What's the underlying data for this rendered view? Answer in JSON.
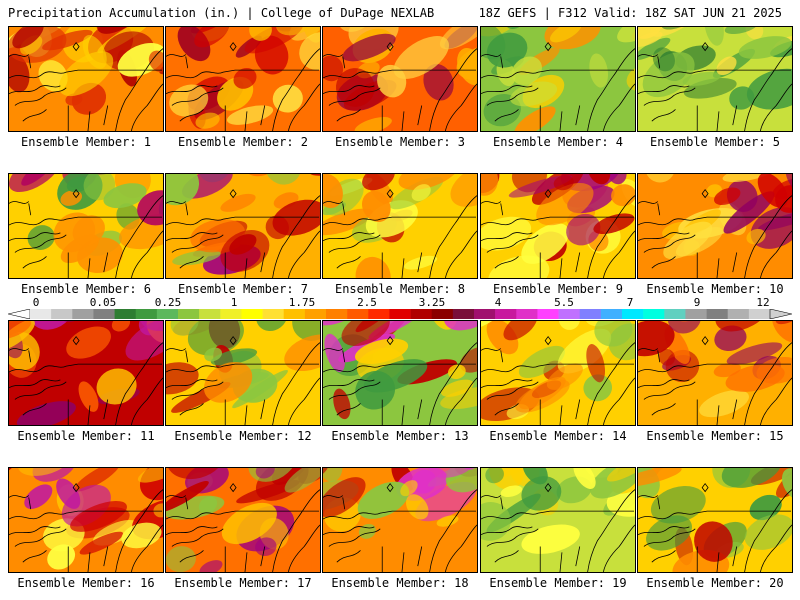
{
  "header": {
    "left_title": "Precipitation Accumulation (in.) | College of DuPage NEXLAB",
    "right_title": "18Z GEFS | F312 Valid: 18Z SAT JUN 21 2025"
  },
  "colorbar": {
    "tick_labels": [
      "0",
      "0.05",
      "0.25",
      "1",
      "1.75",
      "2.5",
      "3.25",
      "4",
      "5.5",
      "7",
      "9",
      "12"
    ],
    "colors": [
      "#e8e8e8",
      "#c8c8c8",
      "#a0a0a0",
      "#808080",
      "#2e7d32",
      "#3f9a3f",
      "#5cb85c",
      "#8cc63f",
      "#c8e03c",
      "#f0f028",
      "#ffff00",
      "#ffe033",
      "#ffc000",
      "#ffa000",
      "#ff8000",
      "#ff5a00",
      "#ff2a00",
      "#e00000",
      "#b00000",
      "#8b0000",
      "#7a0f3a",
      "#a0106e",
      "#c8189e",
      "#e030c8",
      "#ff40ff",
      "#c070ff",
      "#8080ff",
      "#40b0ff",
      "#00e8ff",
      "#00ffe0",
      "#60d0c0",
      "#a0a0a0",
      "#808080",
      "#b0b0b0",
      "#d0d0d0"
    ]
  },
  "panels": [
    {
      "label": "Ensemble Member: 1",
      "palette": [
        "#ff8c00",
        "#e03000",
        "#ffd000",
        "#b00000",
        "#ffff40"
      ]
    },
    {
      "label": "Ensemble Member: 2",
      "palette": [
        "#ff7000",
        "#d00000",
        "#ffc000",
        "#a00020",
        "#ffe040"
      ]
    },
    {
      "label": "Ensemble Member: 3",
      "palette": [
        "#ff6000",
        "#c00000",
        "#ffb000",
        "#900040",
        "#ffd040"
      ]
    },
    {
      "label": "Ensemble Member: 4",
      "palette": [
        "#8cc63f",
        "#ffd000",
        "#3f9a3f",
        "#ff9000",
        "#c8e03c"
      ]
    },
    {
      "label": "Ensemble Member: 5",
      "palette": [
        "#c8e03c",
        "#3f9a3f",
        "#ffe040",
        "#2e7d32",
        "#8cc63f"
      ]
    },
    {
      "label": "Ensemble Member: 6",
      "palette": [
        "#ffd000",
        "#8cc63f",
        "#ff9000",
        "#b00060",
        "#3f9a3f"
      ]
    },
    {
      "label": "Ensemble Member: 7",
      "palette": [
        "#ffb000",
        "#c00000",
        "#ff7000",
        "#a00080",
        "#8cc63f"
      ]
    },
    {
      "label": "Ensemble Member: 8",
      "palette": [
        "#ffd000",
        "#ff8c00",
        "#ffff40",
        "#c00000",
        "#8cc63f"
      ]
    },
    {
      "label": "Ensemble Member: 9",
      "palette": [
        "#ffd000",
        "#ff8c00",
        "#c00000",
        "#ffff40",
        "#a00080"
      ]
    },
    {
      "label": "Ensemble Member: 10",
      "palette": [
        "#ff8c00",
        "#d00000",
        "#ffc000",
        "#900060",
        "#ffe040"
      ]
    },
    {
      "label": "Ensemble Member: 11",
      "palette": [
        "#c00000",
        "#900060",
        "#ff6000",
        "#c018a0",
        "#ffc000"
      ]
    },
    {
      "label": "Ensemble Member: 12",
      "palette": [
        "#ffd000",
        "#8cc63f",
        "#ff8c00",
        "#c00000",
        "#3f9a3f"
      ]
    },
    {
      "label": "Ensemble Member: 13",
      "palette": [
        "#8cc63f",
        "#c00000",
        "#ffd000",
        "#3f9a3f",
        "#e030c8"
      ]
    },
    {
      "label": "Ensemble Member: 14",
      "palette": [
        "#ffd000",
        "#ff8c00",
        "#8cc63f",
        "#c00000",
        "#ffff40"
      ]
    },
    {
      "label": "Ensemble Member: 15",
      "palette": [
        "#ffb000",
        "#c00000",
        "#ff7000",
        "#900060",
        "#ffe040"
      ]
    },
    {
      "label": "Ensemble Member: 16",
      "palette": [
        "#ff8c00",
        "#d00000",
        "#ffc000",
        "#c018a0",
        "#ffff40"
      ]
    },
    {
      "label": "Ensemble Member: 17",
      "palette": [
        "#ff7000",
        "#c00000",
        "#ffc000",
        "#a00080",
        "#8cc63f"
      ]
    },
    {
      "label": "Ensemble Member: 18",
      "palette": [
        "#ff8c00",
        "#c00000",
        "#8cc63f",
        "#e030c8",
        "#ffd000"
      ]
    },
    {
      "label": "Ensemble Member: 19",
      "palette": [
        "#c8e03c",
        "#ffd000",
        "#3f9a3f",
        "#ffff40",
        "#8cc63f"
      ]
    },
    {
      "label": "Ensemble Member: 20",
      "palette": [
        "#ffd000",
        "#8cc63f",
        "#ff8c00",
        "#c00000",
        "#3f9a3f"
      ]
    }
  ]
}
